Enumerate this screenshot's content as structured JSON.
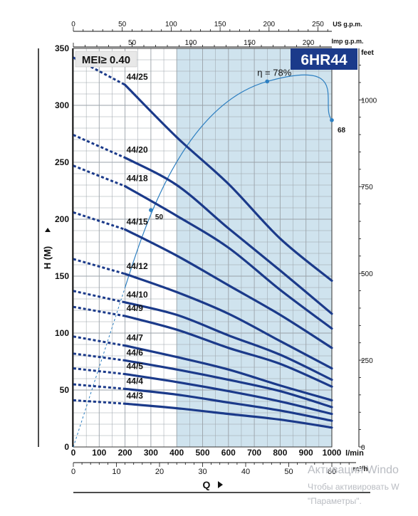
{
  "chart_data": {
    "type": "line",
    "title": "6HR44",
    "badge": "MEI≥ 0.40",
    "xlabel": "Q",
    "ylabel": "H (M)",
    "x_unit": "l/min",
    "xlim": [
      0,
      1000
    ],
    "ylim": [
      0,
      350
    ],
    "x_ticks": [
      "0",
      "100",
      "200",
      "300",
      "400",
      "500",
      "600",
      "700",
      "800",
      "900",
      "1000"
    ],
    "y_ticks": [
      "0",
      "50",
      "100",
      "150",
      "200",
      "250",
      "300",
      "350"
    ],
    "x2_unit": "m³/h",
    "x2_ticks": [
      "0",
      "10",
      "20",
      "30",
      "40",
      "50",
      "60"
    ],
    "y2_unit": "feet",
    "y2_ticks": [
      "0",
      "250",
      "500",
      "750",
      "1000"
    ],
    "top_axes": [
      {
        "unit": "US g.p.m.",
        "ticks": [
          "0",
          "50",
          "100",
          "150",
          "200",
          "250"
        ]
      },
      {
        "unit": "Imp g.p.m.",
        "ticks": [
          "50",
          "100",
          "150",
          "200"
        ]
      }
    ],
    "shaded_range": [
      400,
      1000
    ],
    "efficiency": {
      "label": "η = 78%",
      "peak": [
        750,
        321
      ],
      "left_marker": {
        "label": "50",
        "x": 300,
        "y": 208
      },
      "right_marker": {
        "label": "68",
        "x": 1000,
        "y": 287
      }
    },
    "series": [
      {
        "name": "44/25",
        "x": [
          0,
          200,
          400,
          600,
          800,
          1000
        ],
        "y": [
          342,
          318,
          272,
          231,
          183,
          146
        ]
      },
      {
        "name": "44/20",
        "x": [
          0,
          200,
          400,
          600,
          800,
          1000
        ],
        "y": [
          274,
          254,
          230,
          192,
          155,
          117
        ]
      },
      {
        "name": "44/18",
        "x": [
          0,
          200,
          400,
          600,
          800,
          1000
        ],
        "y": [
          247,
          229,
          203,
          175,
          138,
          104
        ]
      },
      {
        "name": "44/15",
        "x": [
          0,
          200,
          400,
          600,
          800,
          1000
        ],
        "y": [
          206,
          191,
          168,
          142,
          116,
          87
        ]
      },
      {
        "name": "44/12",
        "x": [
          0,
          200,
          400,
          600,
          800,
          1000
        ],
        "y": [
          165,
          152,
          136,
          117,
          93,
          69
        ]
      },
      {
        "name": "44/10",
        "x": [
          0,
          200,
          400,
          600,
          800,
          1000
        ],
        "y": [
          137,
          127,
          116,
          98,
          81,
          59
        ]
      },
      {
        "name": "44/9",
        "x": [
          0,
          200,
          400,
          600,
          800,
          1000
        ],
        "y": [
          123,
          115,
          103,
          87,
          73,
          53
        ]
      },
      {
        "name": "44/7",
        "x": [
          0,
          200,
          400,
          600,
          800,
          1000
        ],
        "y": [
          97,
          89,
          79,
          68,
          54,
          41
        ]
      },
      {
        "name": "44/6",
        "x": [
          0,
          200,
          400,
          600,
          800,
          1000
        ],
        "y": [
          82,
          76,
          68,
          59,
          49,
          35
        ]
      },
      {
        "name": "44/5",
        "x": [
          0,
          200,
          400,
          600,
          800,
          1000
        ],
        "y": [
          69,
          64,
          57,
          49,
          40,
          29
        ]
      },
      {
        "name": "44/4",
        "x": [
          0,
          200,
          400,
          600,
          800,
          1000
        ],
        "y": [
          55,
          51,
          46,
          39,
          32,
          23
        ]
      },
      {
        "name": "44/3",
        "x": [
          0,
          200,
          400,
          600,
          800,
          1000
        ],
        "y": [
          41,
          38,
          34,
          29,
          24,
          17
        ]
      }
    ],
    "grid": true,
    "legend": "inline labels"
  },
  "watermark": {
    "line1": "Активация Windo",
    "line2": "Чтобы активировать W",
    "line3": "\"Параметры\"."
  }
}
